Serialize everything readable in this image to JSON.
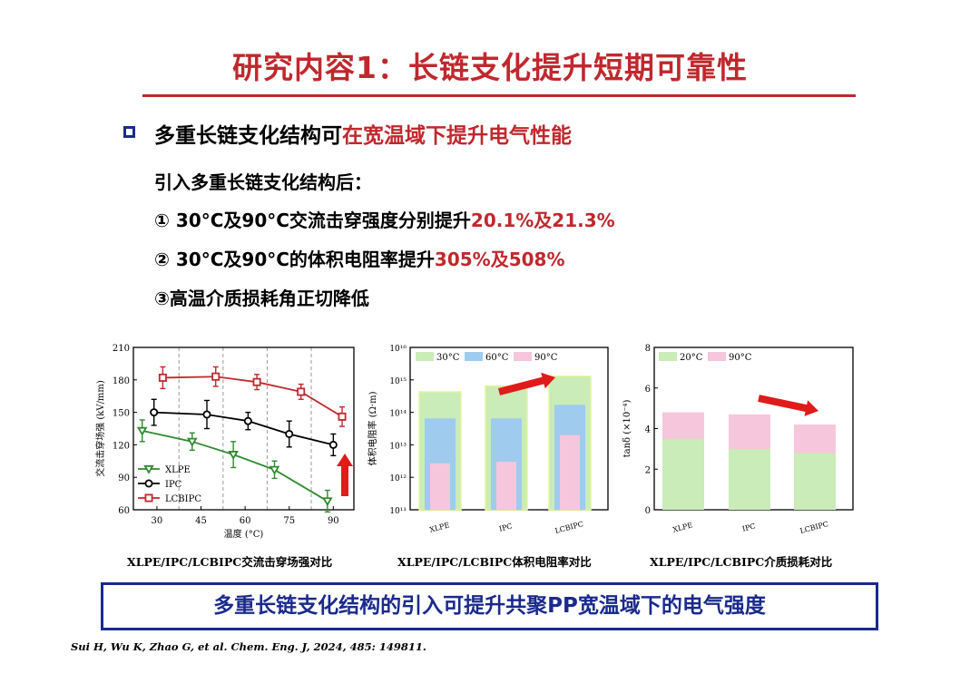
{
  "title": "研究内容1：长链支化提升短期可靠性",
  "heading": {
    "prefix": "多重长链支化结构可",
    "highlight": "在宽温域下提升电气性能"
  },
  "intro": "引入多重长链支化结构后：",
  "points": [
    {
      "prefix": "① 30°C及90°C交流击穿强度分别提升",
      "highlight": "20.1%及21.3%"
    },
    {
      "prefix": "② 30°C及90°C的体积电阻率提升",
      "highlight": "305%及508%"
    },
    {
      "prefix": "③高温介质损耗角正切降低",
      "highlight": ""
    }
  ],
  "captions": [
    "XLPE/IPC/LCBIPC交流击穿场强对比",
    "XLPE/IPC/LCBIPC体积电阻率对比",
    "XLPE/IPC/LCBIPC介质损耗对比"
  ],
  "summary": "多重长链支化结构的引入可提升共聚PP宽温域下的电气强度",
  "reference": "Sui H, Wu K, Zhao G, et al. Chem. Eng. J, 2024, 485: 149811.",
  "chart_data": [
    {
      "type": "line",
      "xlabel": "温度 (°C)",
      "ylabel": "交流击穿场强 (kV/mm)",
      "xlim": [
        22,
        97
      ],
      "ylim": [
        60,
        210
      ],
      "xticks": [
        30,
        45,
        60,
        75,
        90
      ],
      "yticks": [
        60,
        90,
        120,
        150,
        180,
        210
      ],
      "dashed_x": [
        37.5,
        52.5,
        67.5,
        82.5
      ],
      "legend": "bottom-left",
      "series": [
        {
          "name": "XLPE",
          "color": "#2e8b2e",
          "marker": "triangle-down",
          "x": [
            25,
            42,
            56,
            70,
            88
          ],
          "y": [
            133,
            123,
            111,
            97,
            68
          ],
          "err": [
            10,
            8,
            12,
            8,
            10
          ]
        },
        {
          "name": "IPC",
          "color": "#000000",
          "marker": "circle",
          "x": [
            29,
            47,
            61,
            75,
            90
          ],
          "y": [
            150,
            148,
            142,
            130,
            120
          ],
          "err": [
            12,
            13,
            8,
            12,
            10
          ]
        },
        {
          "name": "LCBIPC",
          "color": "#c0282e",
          "marker": "square",
          "x": [
            32,
            50,
            64,
            79,
            93
          ],
          "y": [
            182,
            183,
            178,
            169,
            146
          ],
          "err": [
            10,
            9,
            7,
            7,
            9
          ]
        }
      ]
    },
    {
      "type": "bar",
      "ylabel": "体积电阻率 (Ω·m)",
      "ylog": true,
      "ylim": [
        100000000000.0,
        1e+16
      ],
      "ytick_labels": [
        "10¹¹",
        "10¹²",
        "10¹³",
        "10¹⁴",
        "10¹⁵",
        "10¹⁶"
      ],
      "categories": [
        "XLPE",
        "IPC",
        "LCBIPC"
      ],
      "legend": "top-left",
      "series": [
        {
          "name": "30°C",
          "color": "#c9ecb8",
          "values": [
            430000000000000.0,
            650000000000000.0,
            1300000000000000.0
          ]
        },
        {
          "name": "60°C",
          "color": "#9fcbee",
          "values": [
            65000000000000.0,
            65000000000000.0,
            170000000000000.0
          ]
        },
        {
          "name": "90°C",
          "color": "#f6c6dc",
          "values": [
            2700000000000.0,
            3000000000000.0,
            20000000000000.0
          ]
        }
      ]
    },
    {
      "type": "bar",
      "ylabel": "tanδ (×10⁻⁴)",
      "ylim": [
        0,
        8
      ],
      "yticks": [
        0,
        2,
        4,
        6,
        8
      ],
      "categories": [
        "XLPE",
        "IPC",
        "LCBIPC"
      ],
      "legend": "top-left",
      "series": [
        {
          "name": "20°C",
          "color": "#c9ecb8",
          "values": [
            3.5,
            3.0,
            2.8
          ]
        },
        {
          "name": "90°C",
          "color": "#f6c6dc",
          "values": [
            4.8,
            4.7,
            4.2
          ]
        }
      ]
    }
  ]
}
